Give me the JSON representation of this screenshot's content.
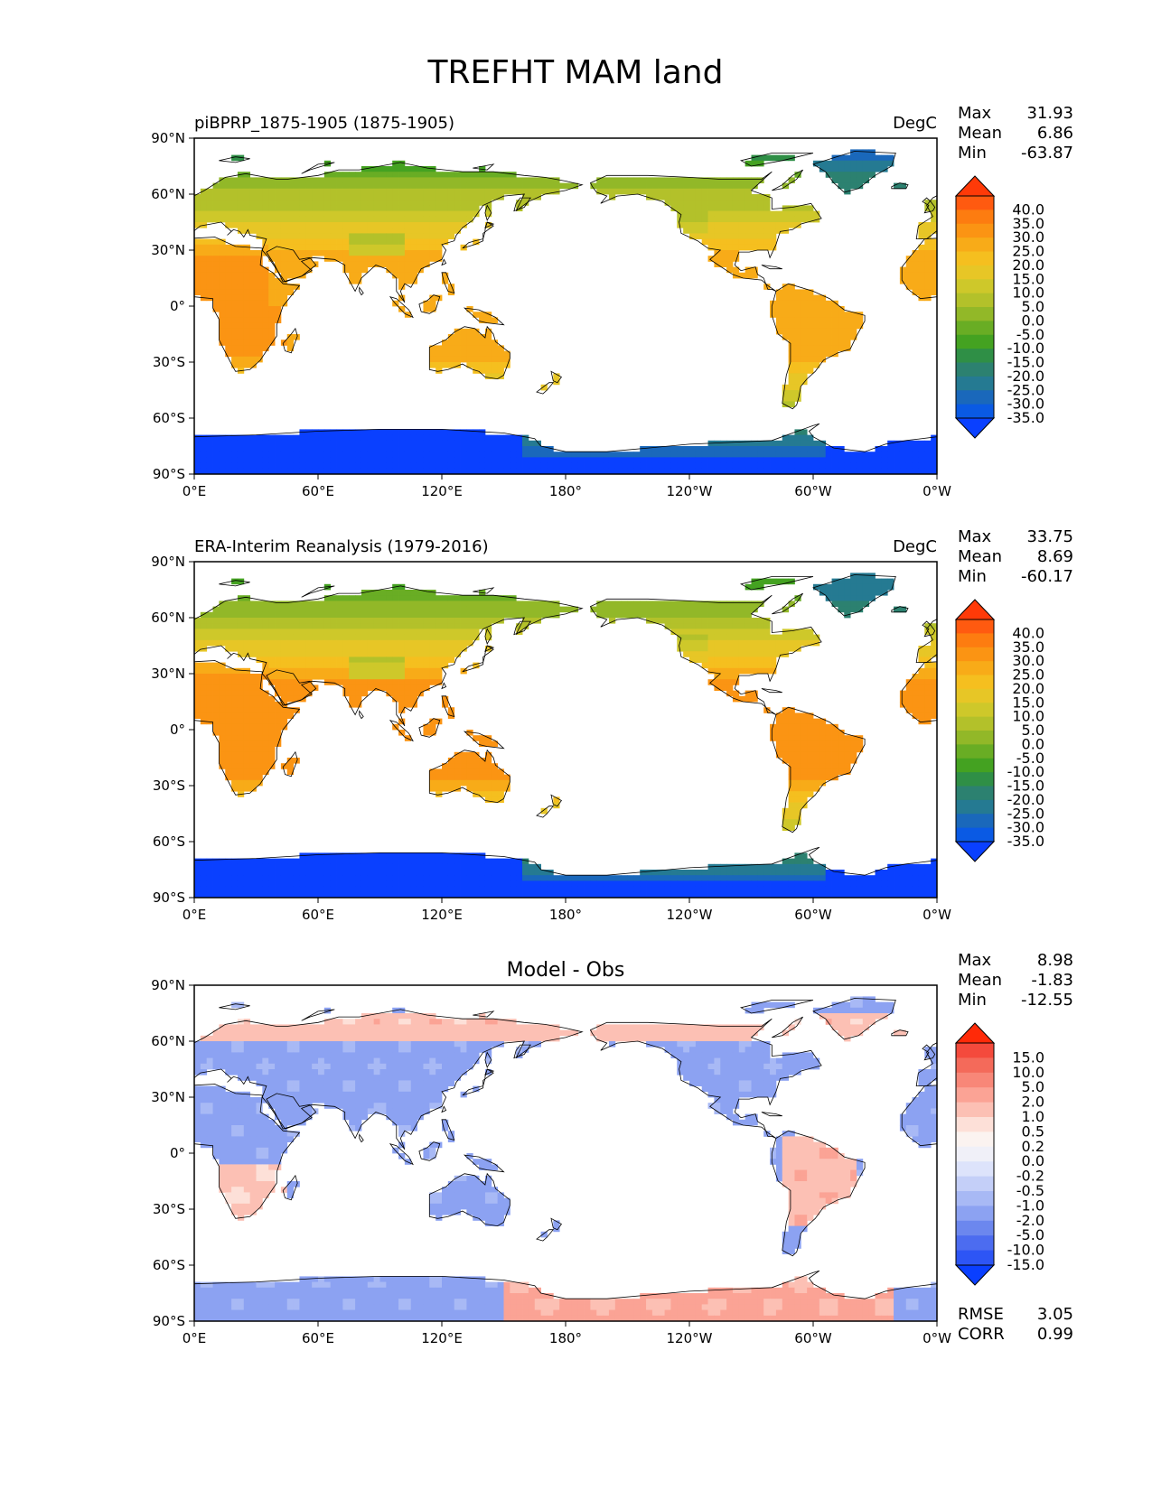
{
  "title": "TREFHT MAM land",
  "colors": {
    "ocean": "#ffffff",
    "coast": "#000000"
  },
  "axes": {
    "lon_ticks": [
      "0°E",
      "60°E",
      "120°E",
      "180°",
      "120°W",
      "60°W",
      "0°W"
    ],
    "lat_ticks": [
      "90°N",
      "60°N",
      "30°N",
      "0°",
      "30°S",
      "60°S",
      "90°S"
    ]
  },
  "panels": [
    {
      "left_title": "piBPRP_1875-1905 (1875-1905)",
      "center_title": "",
      "units": "DegC",
      "stats": [
        {
          "label": "Max",
          "value": "31.93"
        },
        {
          "label": "Mean",
          "value": "6.86"
        },
        {
          "label": "Min",
          "value": "-63.87"
        }
      ],
      "extra_stats": [],
      "colorbar": "temp",
      "field": "model"
    },
    {
      "left_title": "ERA-Interim Reanalysis (1979-2016)",
      "center_title": "",
      "units": "DegC",
      "stats": [
        {
          "label": "Max",
          "value": "33.75"
        },
        {
          "label": "Mean",
          "value": "8.69"
        },
        {
          "label": "Min",
          "value": "-60.17"
        }
      ],
      "extra_stats": [],
      "colorbar": "temp",
      "field": "obs"
    },
    {
      "left_title": "",
      "center_title": "Model - Obs",
      "units": "",
      "stats": [
        {
          "label": "Max",
          "value": "8.98"
        },
        {
          "label": "Mean",
          "value": "-1.83"
        },
        {
          "label": "Min",
          "value": "-12.55"
        }
      ],
      "extra_stats": [
        {
          "label": "RMSE",
          "value": "3.05"
        },
        {
          "label": "CORR",
          "value": "0.99"
        }
      ],
      "colorbar": "diff",
      "field": "diff"
    }
  ],
  "chart_data": [
    {
      "type": "heatmap",
      "title": "piBPRP_1875-1905 (1875-1905)",
      "units": "DegC",
      "xlim": [
        0,
        360
      ],
      "ylim": [
        -90,
        90
      ],
      "colorbar_levels": [
        "40.0",
        "35.0",
        "30.0",
        "25.0",
        "20.0",
        "15.0",
        "10.0",
        "5.0",
        "0.0",
        "-5.0",
        "-10.0",
        "-15.0",
        "-20.0",
        "-25.0",
        "-30.0",
        "-35.0"
      ],
      "colorbar_colors": [
        "#ff3a08",
        "#ff5a10",
        "#fd7c10",
        "#fb9413",
        "#f8ab18",
        "#f5bf1f",
        "#e7c626",
        "#cec82a",
        "#b3c12a",
        "#92b828",
        "#69ad24",
        "#44a221",
        "#2f8f46",
        "#2c8170",
        "#257a92",
        "#1a68bb",
        "#0a5ae4",
        "#0a40ff"
      ],
      "stats": {
        "max": 31.93,
        "mean": 6.86,
        "min": -63.87
      }
    },
    {
      "type": "heatmap",
      "title": "ERA-Interim Reanalysis (1979-2016)",
      "units": "DegC",
      "xlim": [
        0,
        360
      ],
      "ylim": [
        -90,
        90
      ],
      "colorbar_levels": [
        "40.0",
        "35.0",
        "30.0",
        "25.0",
        "20.0",
        "15.0",
        "10.0",
        "5.0",
        "0.0",
        "-5.0",
        "-10.0",
        "-15.0",
        "-20.0",
        "-25.0",
        "-30.0",
        "-35.0"
      ],
      "colorbar_colors": [
        "#ff3a08",
        "#ff5a10",
        "#fd7c10",
        "#fb9413",
        "#f8ab18",
        "#f5bf1f",
        "#e7c626",
        "#cec82a",
        "#b3c12a",
        "#92b828",
        "#69ad24",
        "#44a221",
        "#2f8f46",
        "#2c8170",
        "#257a92",
        "#1a68bb",
        "#0a5ae4",
        "#0a40ff"
      ],
      "stats": {
        "max": 33.75,
        "mean": 8.69,
        "min": -60.17
      }
    },
    {
      "type": "heatmap",
      "title": "Model - Obs",
      "units": "",
      "xlim": [
        0,
        360
      ],
      "ylim": [
        -90,
        90
      ],
      "colorbar_levels": [
        "15.0",
        "10.0",
        "5.0",
        "2.0",
        "1.0",
        "0.5",
        "0.2",
        "0.0",
        "-0.2",
        "-0.5",
        "-1.0",
        "-2.0",
        "-5.0",
        "-10.0",
        "-15.0"
      ],
      "colorbar_colors": [
        "#ff2a08",
        "#f44a3c",
        "#f46a5a",
        "#f88778",
        "#fba395",
        "#fcc0b4",
        "#fde0d8",
        "#fbf3f0",
        "#f0f0f8",
        "#dde3fb",
        "#c4cff8",
        "#a8b9f5",
        "#8ca2f2",
        "#6c87ee",
        "#4c6cf0",
        "#2d55f5",
        "#0a3fff"
      ],
      "stats": {
        "max": 8.98,
        "mean": -1.83,
        "min": -12.55,
        "rmse": 3.05,
        "corr": 0.99
      }
    }
  ]
}
